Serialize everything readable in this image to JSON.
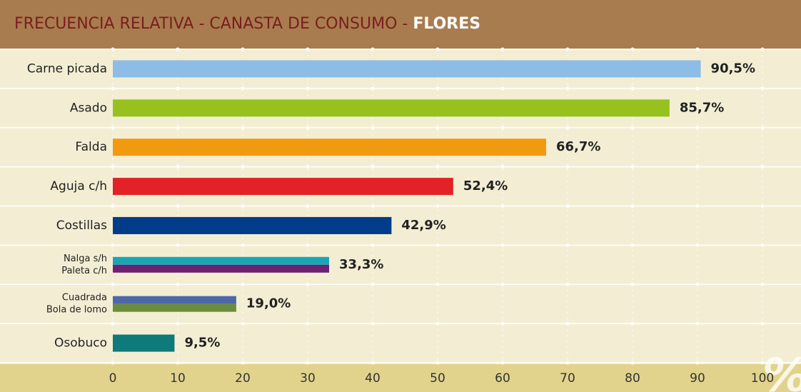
{
  "chart_data": {
    "type": "hbar",
    "title_parts": [
      "FRECUENCIA RELATIVA - CANASTA DE CONSUMO - ",
      "FLORES"
    ],
    "categories": [
      "Carne picada",
      "Asado",
      "Falda",
      "Aguja c/h",
      "Costillas",
      "Nalga s/h",
      "Paleta c/h",
      "Cuadrada",
      "Bola de lomo",
      "Osobuco"
    ],
    "values": [
      90.5,
      85.7,
      66.7,
      52.4,
      42.9,
      33.3,
      33.3,
      19.0,
      19.0,
      9.5
    ],
    "value_labels": [
      "90,5%",
      "85,7%",
      "66,7%",
      "52,4%",
      "42,9%",
      "33,3%",
      null,
      "19,0%",
      null,
      "9,5%"
    ],
    "colors": [
      "#8dbde6",
      "#96c11f",
      "#f29a0f",
      "#e32227",
      "#003c8a",
      "#1aa6b7",
      "#6e2073",
      "#4e67a8",
      "#6b8c3a",
      "#0f7a7a"
    ],
    "xlim": [
      0,
      100
    ],
    "xticks": [
      0,
      10,
      20,
      30,
      40,
      50,
      60,
      70,
      80,
      90,
      100
    ],
    "x_label": "%",
    "grid": true
  }
}
